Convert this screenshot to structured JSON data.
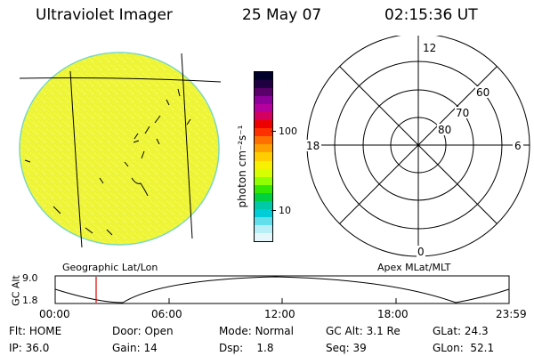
{
  "header": {
    "title": "Ultraviolet Imager",
    "date": "25 May 07",
    "time": "02:15:36 UT"
  },
  "colorbar": {
    "label": "photon cm⁻²s⁻¹",
    "ticks": [
      "100",
      "10"
    ],
    "colors": [
      "#00002a",
      "#1f0040",
      "#5a006a",
      "#8e009c",
      "#b6009e",
      "#d30060",
      "#ec0000",
      "#ff3000",
      "#ff7000",
      "#ff9f00",
      "#ffcd00",
      "#f7f000",
      "#d6ff00",
      "#90ff00",
      "#34e700",
      "#00cf40",
      "#00c9a8",
      "#00cdd8",
      "#63dfec",
      "#b8eff6",
      "#e6f7fb"
    ]
  },
  "polar": {
    "mlt_labels": {
      "top": "12",
      "left": "18",
      "right": "6",
      "bottom": "0"
    },
    "lat_labels": [
      "60",
      "70",
      "80"
    ]
  },
  "timeline": {
    "left_label": "Geographic Lat/Lon",
    "right_label": "Apex MLat/MLT",
    "y_axis_label": "GC Alt",
    "y_ticks": [
      "9.0",
      "1.8"
    ],
    "x_ticks": [
      "00:00",
      "06:00",
      "12:00",
      "18:00",
      "23:59"
    ],
    "marker_color": "#e00000"
  },
  "status": {
    "row1": [
      {
        "label": "Flt:",
        "value": "HOME"
      },
      {
        "label": "Door:",
        "value": "Open"
      },
      {
        "label": "Mode:",
        "value": "Normal"
      },
      {
        "label": "GC Alt:",
        "value": "3.1 Re"
      },
      {
        "label": "GLat:",
        "value": "24.3"
      }
    ],
    "row2": [
      {
        "label": "IP:",
        "value": "36.0"
      },
      {
        "label": "Gain:",
        "value": "14"
      },
      {
        "label": "Dsp:",
        "value": "1.8"
      },
      {
        "label": "Seq:",
        "value": "39"
      },
      {
        "label": "GLon:",
        "value": "52.1"
      }
    ]
  }
}
